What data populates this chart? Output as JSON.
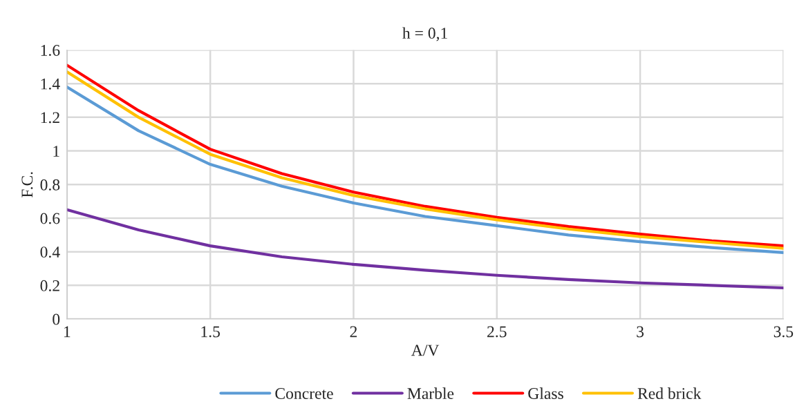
{
  "chart_data": {
    "type": "line",
    "title": "h = 0,1",
    "xlabel": "A/V",
    "ylabel": "F.C.",
    "x": [
      1,
      1.25,
      1.5,
      1.75,
      2,
      2.25,
      2.5,
      2.75,
      3,
      3.25,
      3.5
    ],
    "series": [
      {
        "name": "Concrete",
        "color": "#5b9bd5",
        "values": [
          1.38,
          1.12,
          0.92,
          0.79,
          0.69,
          0.61,
          0.555,
          0.5,
          0.46,
          0.425,
          0.395
        ]
      },
      {
        "name": "Marble",
        "color": "#7030a0",
        "values": [
          0.65,
          0.53,
          0.435,
          0.37,
          0.325,
          0.29,
          0.26,
          0.235,
          0.215,
          0.2,
          0.185
        ]
      },
      {
        "name": "Glass",
        "color": "#ff0000",
        "values": [
          1.51,
          1.24,
          1.01,
          0.865,
          0.755,
          0.67,
          0.605,
          0.55,
          0.505,
          0.465,
          0.435
        ]
      },
      {
        "name": "Red brick",
        "color": "#ffc000",
        "values": [
          1.47,
          1.2,
          0.98,
          0.84,
          0.735,
          0.655,
          0.59,
          0.535,
          0.49,
          0.455,
          0.42
        ]
      }
    ],
    "xlim": [
      1,
      3.5
    ],
    "xticks": [
      1,
      1.5,
      2,
      2.5,
      3,
      3.5
    ],
    "ylim": [
      0,
      1.6
    ],
    "yticks": [
      0,
      0.2,
      0.4,
      0.6,
      0.8,
      1,
      1.2,
      1.4,
      1.6
    ],
    "grid": true,
    "legend": "bottom",
    "marker": "none",
    "line_style": "solid"
  }
}
